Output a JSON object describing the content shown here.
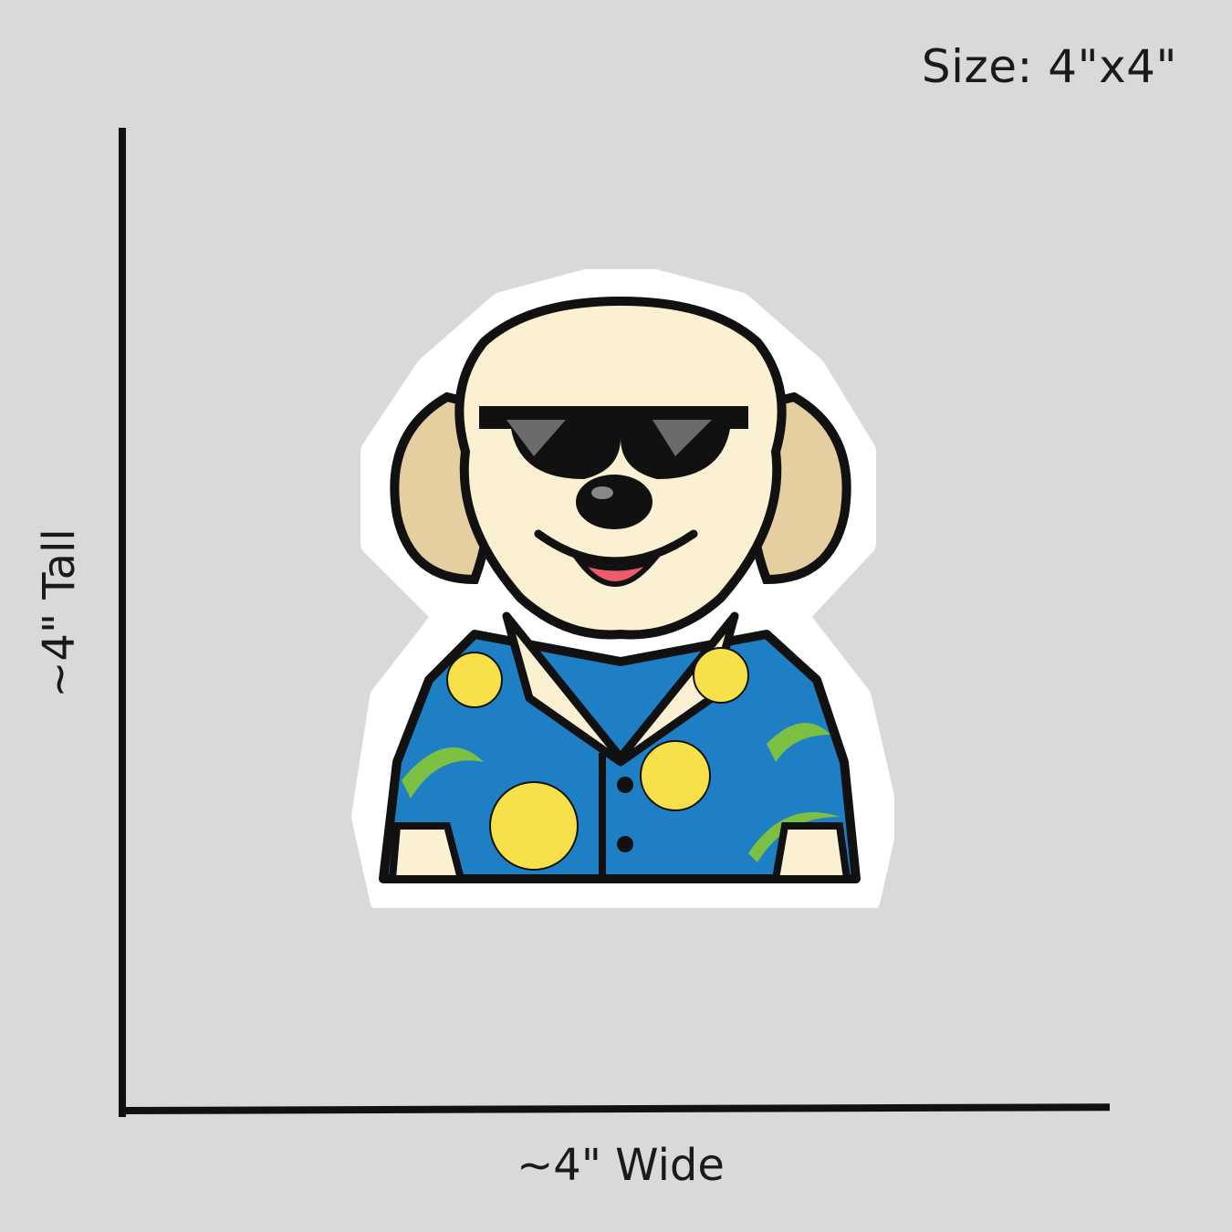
{
  "size_label": "Size: 4\"x4\"",
  "height_label": "~4\" Tall",
  "width_label": "~4\" Wide",
  "colors": {
    "background": "#d9d9d9",
    "fur": "#fbf0d2",
    "fur_shade": "#d9b98a",
    "shirt": "#1e7fc4",
    "flower": "#f8e04a",
    "leaf": "#7cc043",
    "tongue": "#ee5a6e",
    "outline": "#111111"
  }
}
